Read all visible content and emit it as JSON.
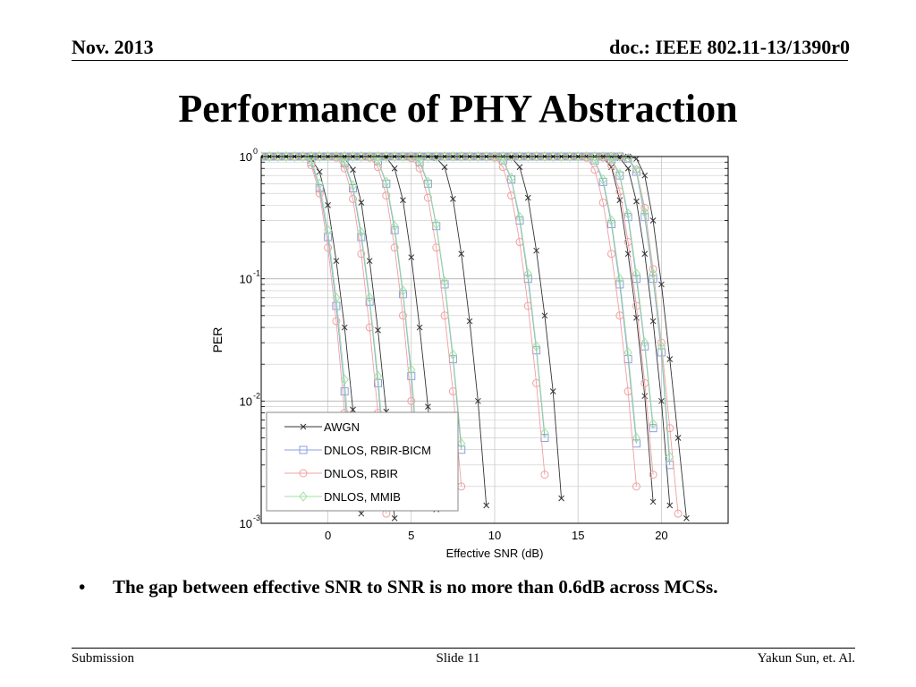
{
  "header": {
    "date": "Nov. 2013",
    "doc_id": "doc.: IEEE 802.11-13/1390r0"
  },
  "slide_title": "Performance of PHY Abstraction",
  "bullets": [
    {
      "marker": "•",
      "text": "The gap between effective SNR to SNR is no more than 0.6dB across MCSs."
    }
  ],
  "footer": {
    "left": "Submission",
    "center": "Slide 11",
    "right": "Yakun Sun, et. Al."
  },
  "colors": {
    "AWGN": "#333333",
    "DNLOS, RBIR-BICM": "#8aa0e0",
    "DNLOS, RBIR": "#f0a0a0",
    "DNLOS, MMIB": "#a0e0a0",
    "grid": "#c8c8c8"
  },
  "chart_data": {
    "type": "line",
    "title": "",
    "xlabel": "Effective SNR (dB)",
    "ylabel": "PER",
    "xlim": [
      -4,
      24
    ],
    "ylim": [
      0.001,
      1
    ],
    "yscale": "log",
    "xticks": [
      0,
      5,
      10,
      15,
      20
    ],
    "yticks": [
      {
        "base": "10",
        "exp": "0",
        "value": 1
      },
      {
        "base": "10",
        "exp": "-1",
        "value": 0.1
      },
      {
        "base": "10",
        "exp": "-2",
        "value": 0.01
      },
      {
        "base": "10",
        "exp": "-3",
        "value": 0.001
      }
    ],
    "grid": true,
    "legend": {
      "position": "bottom-left"
    },
    "x": [
      -4,
      -3.5,
      -3,
      -2.5,
      -2,
      -1.5,
      -1,
      -0.5,
      0,
      0.5,
      1,
      1.5,
      2,
      2.5,
      3,
      3.5,
      4,
      4.5,
      5,
      5.5,
      6,
      6.5,
      7,
      7.5,
      8,
      8.5,
      9,
      9.5,
      10,
      10.5,
      11,
      11.5,
      12,
      12.5,
      13,
      13.5,
      14,
      14.5,
      15,
      15.5,
      16,
      16.5,
      17,
      17.5,
      18,
      18.5,
      19,
      19.5,
      20,
      20.5,
      21,
      21.5,
      22
    ],
    "series": [
      {
        "name": "AWGN",
        "marker": "x",
        "curves": [
          [
            1,
            1,
            1,
            1,
            1,
            1,
            0.96,
            0.75,
            0.4,
            0.14,
            0.04,
            0.0085,
            0.0012
          ],
          [
            1,
            1,
            1,
            1,
            1,
            1,
            1,
            1,
            1,
            1,
            0.97,
            0.78,
            0.42,
            0.14,
            0.038,
            0.0082,
            0.0011
          ],
          [
            1,
            1,
            1,
            1,
            1,
            1,
            1,
            1,
            1,
            1,
            1,
            1,
            1,
            1,
            1,
            0.98,
            0.8,
            0.44,
            0.15,
            0.04,
            0.009,
            0.0013
          ],
          [
            1,
            1,
            1,
            1,
            1,
            1,
            1,
            1,
            1,
            1,
            1,
            1,
            1,
            1,
            1,
            1,
            1,
            1,
            1,
            1,
            1,
            0.97,
            0.82,
            0.45,
            0.16,
            0.045,
            0.01,
            0.0014
          ],
          [
            1,
            1,
            1,
            1,
            1,
            1,
            1,
            1,
            1,
            1,
            1,
            1,
            1,
            1,
            1,
            1,
            1,
            1,
            1,
            1,
            1,
            1,
            1,
            1,
            1,
            1,
            1,
            1,
            1,
            1,
            0.98,
            0.82,
            0.46,
            0.17,
            0.05,
            0.012,
            0.0016
          ],
          [
            1,
            1,
            1,
            1,
            1,
            1,
            1,
            1,
            1,
            1,
            1,
            1,
            1,
            1,
            1,
            1,
            1,
            1,
            1,
            1,
            1,
            1,
            1,
            1,
            1,
            1,
            1,
            1,
            1,
            1,
            1,
            1,
            1,
            1,
            1,
            1,
            1,
            1,
            1,
            1,
            1,
            0.98,
            0.82,
            0.44,
            0.16,
            0.048,
            0.011,
            0.0015
          ],
          [
            1,
            1,
            1,
            1,
            1,
            1,
            1,
            1,
            1,
            1,
            1,
            1,
            1,
            1,
            1,
            1,
            1,
            1,
            1,
            1,
            1,
            1,
            1,
            1,
            1,
            1,
            1,
            1,
            1,
            1,
            1,
            1,
            1,
            1,
            1,
            1,
            1,
            1,
            1,
            1,
            1,
            1,
            1,
            0.97,
            0.8,
            0.43,
            0.16,
            0.045,
            0.01,
            0.0014
          ],
          [
            1,
            1,
            1,
            1,
            1,
            1,
            1,
            1,
            1,
            1,
            1,
            1,
            1,
            1,
            1,
            1,
            1,
            1,
            1,
            1,
            1,
            1,
            1,
            1,
            1,
            1,
            1,
            1,
            1,
            1,
            1,
            1,
            1,
            1,
            1,
            1,
            1,
            1,
            1,
            1,
            1,
            1,
            1,
            1,
            1,
            0.96,
            0.7,
            0.3,
            0.09,
            0.022,
            0.005,
            0.0011
          ]
        ]
      },
      {
        "name": "DNLOS, RBIR-BICM",
        "marker": "square",
        "curves": [
          [
            1,
            1,
            1,
            1,
            1,
            1,
            0.9,
            0.55,
            0.22,
            0.06,
            0.012,
            0.0015
          ],
          [
            1,
            1,
            1,
            1,
            1,
            1,
            1,
            1,
            1,
            1,
            0.88,
            0.55,
            0.22,
            0.065,
            0.014,
            0.002
          ],
          [
            1,
            1,
            1,
            1,
            1,
            1,
            1,
            1,
            1,
            1,
            1,
            1,
            1,
            1,
            0.92,
            0.6,
            0.25,
            0.075,
            0.016,
            0.0022
          ],
          [
            1,
            1,
            1,
            1,
            1,
            1,
            1,
            1,
            1,
            1,
            1,
            1,
            1,
            1,
            1,
            1,
            1,
            1,
            1,
            0.9,
            0.6,
            0.27,
            0.09,
            0.022,
            0.004
          ],
          [
            1,
            1,
            1,
            1,
            1,
            1,
            1,
            1,
            1,
            1,
            1,
            1,
            1,
            1,
            1,
            1,
            1,
            1,
            1,
            1,
            1,
            1,
            1,
            1,
            1,
            1,
            1,
            1,
            1,
            0.93,
            0.65,
            0.3,
            0.1,
            0.026,
            0.005
          ],
          [
            1,
            1,
            1,
            1,
            1,
            1,
            1,
            1,
            1,
            1,
            1,
            1,
            1,
            1,
            1,
            1,
            1,
            1,
            1,
            1,
            1,
            1,
            1,
            1,
            1,
            1,
            1,
            1,
            1,
            1,
            1,
            1,
            1,
            1,
            1,
            1,
            1,
            1,
            1,
            1,
            0.93,
            0.62,
            0.28,
            0.09,
            0.022,
            0.0045
          ],
          [
            1,
            1,
            1,
            1,
            1,
            1,
            1,
            1,
            1,
            1,
            1,
            1,
            1,
            1,
            1,
            1,
            1,
            1,
            1,
            1,
            1,
            1,
            1,
            1,
            1,
            1,
            1,
            1,
            1,
            1,
            1,
            1,
            1,
            1,
            1,
            1,
            1,
            1,
            1,
            1,
            1,
            1,
            0.95,
            0.7,
            0.32,
            0.1,
            0.028,
            0.006
          ],
          [
            1,
            1,
            1,
            1,
            1,
            1,
            1,
            1,
            1,
            1,
            1,
            1,
            1,
            1,
            1,
            1,
            1,
            1,
            1,
            1,
            1,
            1,
            1,
            1,
            1,
            1,
            1,
            1,
            1,
            1,
            1,
            1,
            1,
            1,
            1,
            1,
            1,
            1,
            1,
            1,
            1,
            1,
            1,
            1,
            0.96,
            0.75,
            0.32,
            0.1,
            0.025,
            0.003
          ]
        ]
      },
      {
        "name": "DNLOS, RBIR",
        "marker": "circle",
        "curves": [
          [
            1,
            1,
            1,
            1,
            1,
            1,
            0.85,
            0.5,
            0.18,
            0.045,
            0.008
          ],
          [
            1,
            1,
            1,
            1,
            1,
            1,
            1,
            1,
            1,
            0.98,
            0.8,
            0.45,
            0.16,
            0.04,
            0.008,
            0.0012
          ],
          [
            1,
            1,
            1,
            1,
            1,
            1,
            1,
            1,
            1,
            1,
            1,
            1,
            1,
            0.98,
            0.82,
            0.48,
            0.18,
            0.05,
            0.01,
            0.0015
          ],
          [
            1,
            1,
            1,
            1,
            1,
            1,
            1,
            1,
            1,
            1,
            1,
            1,
            1,
            1,
            1,
            1,
            1,
            1,
            0.97,
            0.8,
            0.46,
            0.18,
            0.05,
            0.012,
            0.002
          ],
          [
            1,
            1,
            1,
            1,
            1,
            1,
            1,
            1,
            1,
            1,
            1,
            1,
            1,
            1,
            1,
            1,
            1,
            1,
            1,
            1,
            1,
            1,
            1,
            1,
            1,
            1,
            1,
            1,
            0.98,
            0.82,
            0.48,
            0.2,
            0.06,
            0.014,
            0.0025
          ],
          [
            1,
            1,
            1,
            1,
            1,
            1,
            1,
            1,
            1,
            1,
            1,
            1,
            1,
            1,
            1,
            1,
            1,
            1,
            1,
            1,
            1,
            1,
            1,
            1,
            1,
            1,
            1,
            1,
            1,
            1,
            1,
            1,
            1,
            1,
            1,
            1,
            1,
            1,
            1,
            0.98,
            0.78,
            0.42,
            0.16,
            0.05,
            0.012,
            0.002
          ],
          [
            1,
            1,
            1,
            1,
            1,
            1,
            1,
            1,
            1,
            1,
            1,
            1,
            1,
            1,
            1,
            1,
            1,
            1,
            1,
            1,
            1,
            1,
            1,
            1,
            1,
            1,
            1,
            1,
            1,
            1,
            1,
            1,
            1,
            1,
            1,
            1,
            1,
            1,
            1,
            1,
            1,
            0.98,
            0.85,
            0.52,
            0.2,
            0.06,
            0.014,
            0.0025
          ],
          [
            1,
            1,
            1,
            1,
            1,
            1,
            1,
            1,
            1,
            1,
            1,
            1,
            1,
            1,
            1,
            1,
            1,
            1,
            1,
            1,
            1,
            1,
            1,
            1,
            1,
            1,
            1,
            1,
            1,
            1,
            1,
            1,
            1,
            1,
            1,
            1,
            1,
            1,
            1,
            1,
            1,
            1,
            1,
            1,
            0.97,
            0.78,
            0.38,
            0.12,
            0.03,
            0.006,
            0.0012
          ]
        ]
      },
      {
        "name": "DNLOS, MMIB",
        "marker": "diamond",
        "curves": [
          [
            1,
            1,
            1,
            1,
            1,
            1,
            0.92,
            0.6,
            0.25,
            0.07,
            0.015,
            0.002
          ],
          [
            1,
            1,
            1,
            1,
            1,
            1,
            1,
            1,
            1,
            1,
            0.9,
            0.58,
            0.24,
            0.07,
            0.016,
            0.0025
          ],
          [
            1,
            1,
            1,
            1,
            1,
            1,
            1,
            1,
            1,
            1,
            1,
            1,
            1,
            1,
            0.93,
            0.62,
            0.27,
            0.08,
            0.018,
            0.0025
          ],
          [
            1,
            1,
            1,
            1,
            1,
            1,
            1,
            1,
            1,
            1,
            1,
            1,
            1,
            1,
            1,
            1,
            1,
            1,
            1,
            0.92,
            0.62,
            0.28,
            0.095,
            0.024,
            0.0045
          ],
          [
            1,
            1,
            1,
            1,
            1,
            1,
            1,
            1,
            1,
            1,
            1,
            1,
            1,
            1,
            1,
            1,
            1,
            1,
            1,
            1,
            1,
            1,
            1,
            1,
            1,
            1,
            1,
            1,
            1,
            0.94,
            0.67,
            0.32,
            0.11,
            0.028,
            0.0055
          ],
          [
            1,
            1,
            1,
            1,
            1,
            1,
            1,
            1,
            1,
            1,
            1,
            1,
            1,
            1,
            1,
            1,
            1,
            1,
            1,
            1,
            1,
            1,
            1,
            1,
            1,
            1,
            1,
            1,
            1,
            1,
            1,
            1,
            1,
            1,
            1,
            1,
            1,
            1,
            1,
            1,
            0.94,
            0.65,
            0.3,
            0.1,
            0.025,
            0.005
          ],
          [
            1,
            1,
            1,
            1,
            1,
            1,
            1,
            1,
            1,
            1,
            1,
            1,
            1,
            1,
            1,
            1,
            1,
            1,
            1,
            1,
            1,
            1,
            1,
            1,
            1,
            1,
            1,
            1,
            1,
            1,
            1,
            1,
            1,
            1,
            1,
            1,
            1,
            1,
            1,
            1,
            1,
            1,
            0.96,
            0.72,
            0.34,
            0.11,
            0.03,
            0.0065
          ],
          [
            1,
            1,
            1,
            1,
            1,
            1,
            1,
            1,
            1,
            1,
            1,
            1,
            1,
            1,
            1,
            1,
            1,
            1,
            1,
            1,
            1,
            1,
            1,
            1,
            1,
            1,
            1,
            1,
            1,
            1,
            1,
            1,
            1,
            1,
            1,
            1,
            1,
            1,
            1,
            1,
            1,
            1,
            1,
            1,
            0.97,
            0.78,
            0.35,
            0.11,
            0.028,
            0.0035
          ]
        ]
      }
    ]
  }
}
